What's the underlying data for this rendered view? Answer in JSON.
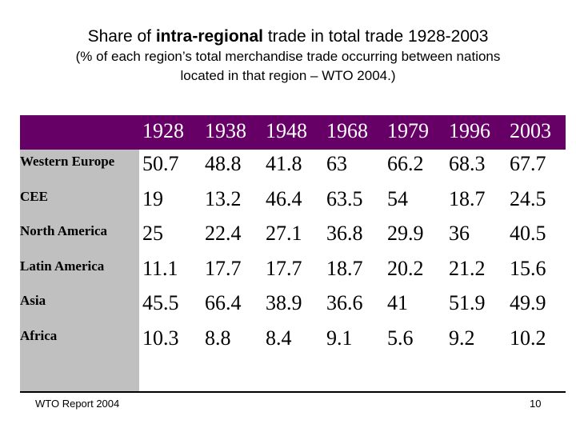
{
  "title": {
    "prefix": "Share of ",
    "bold": "intra-regional",
    "suffix": " trade in total trade 1928-2003"
  },
  "subtitle_line1": "(% of each region’s total merchandise trade occurring between nations",
  "subtitle_line2": "located in that region – WTO 2004.)",
  "colors": {
    "header_band": "#660066",
    "row_label_column": "#c0c0c0"
  },
  "chart_data": {
    "type": "table",
    "columns": [
      "1928",
      "1938",
      "1948",
      "1968",
      "1979",
      "1996",
      "2003"
    ],
    "rows": [
      {
        "label": "Western Europe",
        "values": [
          "50.7",
          "48.8",
          "41.8",
          "63",
          "66.2",
          "68.3",
          "67.7"
        ]
      },
      {
        "label": "CEE",
        "values": [
          "19",
          "13.2",
          "46.4",
          "63.5",
          "54",
          "18.7",
          "24.5"
        ]
      },
      {
        "label": "North America",
        "values": [
          "25",
          "22.4",
          "27.1",
          "36.8",
          "29.9",
          "36",
          "40.5"
        ]
      },
      {
        "label": "Latin America",
        "values": [
          "11.1",
          "17.7",
          "17.7",
          "18.7",
          "20.2",
          "21.2",
          "15.6"
        ]
      },
      {
        "label": "Asia",
        "values": [
          "45.5",
          "66.4",
          "38.9",
          "36.6",
          "41",
          "51.9",
          "49.9"
        ]
      },
      {
        "label": "Africa",
        "values": [
          "10.3",
          "8.8",
          "8.4",
          "9.1",
          "5.6",
          "9.2",
          "10.2"
        ]
      }
    ]
  },
  "footer": {
    "source": "WTO Report 2004",
    "page_number": "10"
  }
}
